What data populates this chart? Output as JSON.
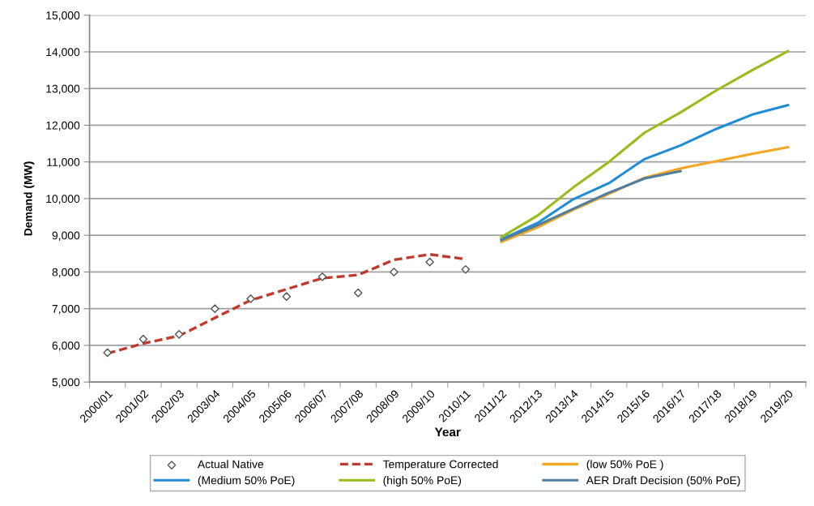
{
  "chart_data": {
    "type": "line",
    "xlabel": "Year",
    "ylabel": "Demand (MW)",
    "categories": [
      "2000/01",
      "2001/02",
      "2002/03",
      "2003/04",
      "2004/05",
      "2005/06",
      "2006/07",
      "2007/08",
      "2008/09",
      "2009/10",
      "2010/11",
      "2011/12",
      "2012/13",
      "2013/14",
      "2014/15",
      "2015/16",
      "2016/17",
      "2017/18",
      "2018/19",
      "2019/20"
    ],
    "ylim": [
      5000,
      15000
    ],
    "yticks": [
      {
        "value": 5000,
        "label": "5,000"
      },
      {
        "value": 6000,
        "label": "6,000"
      },
      {
        "value": 7000,
        "label": "7,000"
      },
      {
        "value": 8000,
        "label": "8,000"
      },
      {
        "value": 9000,
        "label": "9,000"
      },
      {
        "value": 10000,
        "label": "10,000"
      },
      {
        "value": 11000,
        "label": "11,000"
      },
      {
        "value": 12000,
        "label": "12,000"
      },
      {
        "value": 13000,
        "label": "13,000"
      },
      {
        "value": 14000,
        "label": "14,000"
      },
      {
        "value": 15000,
        "label": "15,000"
      }
    ],
    "grid": "y",
    "legend": "bottom",
    "series": [
      {
        "name": "Actual Native",
        "type": "scatter",
        "marker": "diamond",
        "color": "#555555",
        "values": [
          5800,
          6170,
          6300,
          7000,
          7270,
          7330,
          7870,
          7430,
          8000,
          8270,
          8070,
          null,
          null,
          null,
          null,
          null,
          null,
          null,
          null,
          null
        ]
      },
      {
        "name": "Temperature Corrected",
        "line_style": "dashed",
        "color": "#c0392b",
        "values": [
          5780,
          6050,
          6260,
          6750,
          7230,
          7530,
          7830,
          7920,
          8330,
          8480,
          8350,
          null,
          null,
          null,
          null,
          null,
          null,
          null,
          null,
          null
        ]
      },
      {
        "name": "(low 50% PoE )",
        "line_style": "solid",
        "color": "#f5a623",
        "values": [
          null,
          null,
          null,
          null,
          null,
          null,
          null,
          null,
          null,
          null,
          null,
          8820,
          9210,
          9690,
          10130,
          10570,
          10820,
          11020,
          11220,
          11400
        ]
      },
      {
        "name": "(Medium 50% PoE)",
        "line_style": "solid",
        "color": "#1f8dd6",
        "values": [
          null,
          null,
          null,
          null,
          null,
          null,
          null,
          null,
          null,
          null,
          null,
          8890,
          9330,
          9980,
          10420,
          11080,
          11450,
          11900,
          12290,
          12550
        ]
      },
      {
        "name": "(high 50% PoE)",
        "line_style": "solid",
        "color": "#9bbb1a",
        "values": [
          null,
          null,
          null,
          null,
          null,
          null,
          null,
          null,
          null,
          null,
          null,
          8950,
          9530,
          10300,
          11000,
          11800,
          12350,
          12950,
          13500,
          14020
        ]
      },
      {
        "name": "AER Draft Decision (50% PoE)",
        "line_style": "solid",
        "color": "#4f7fa0",
        "values": [
          null,
          null,
          null,
          null,
          null,
          null,
          null,
          null,
          null,
          null,
          null,
          8870,
          9270,
          9720,
          10160,
          10550,
          10750,
          null,
          null,
          null
        ]
      }
    ]
  }
}
